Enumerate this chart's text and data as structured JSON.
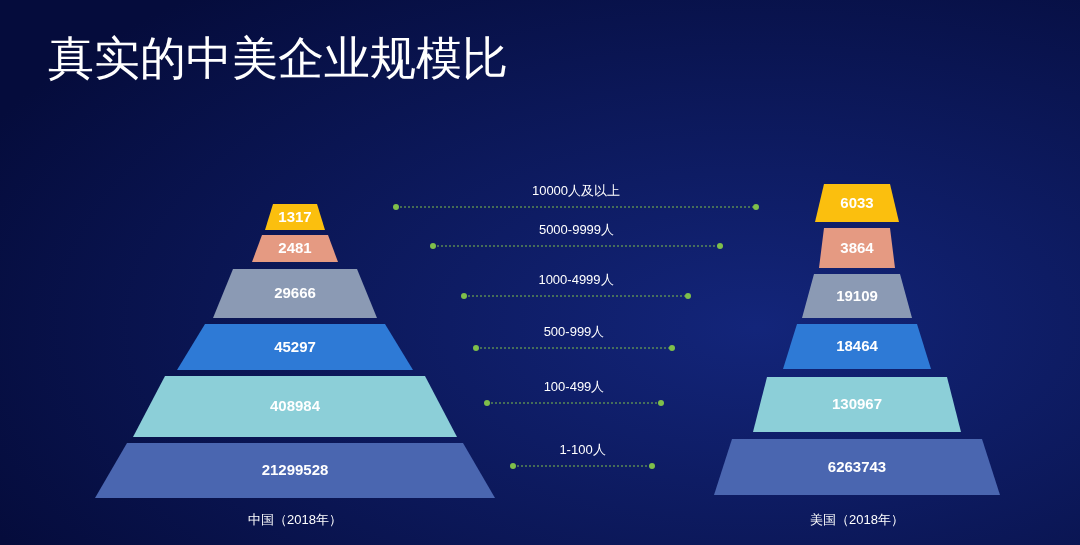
{
  "chart_data": {
    "type": "other",
    "title": "真实的中美企业规模比",
    "categories": [
      "10000人及以上",
      "5000-9999人",
      "1000-4999人",
      "500-999人",
      "100-499人",
      "1-100人"
    ],
    "series": [
      {
        "name": "中国（2018年）",
        "colors": [
          "#fbbf0e",
          "#e59a82",
          "#8b9ab4",
          "#2e7ad6",
          "#8ccfd8",
          "#4a66b0"
        ],
        "values": [
          1317,
          2481,
          29666,
          45297,
          408984,
          21299528
        ]
      },
      {
        "name": "美国（2018年）",
        "colors": [
          "#fbbf0e",
          "#e59a82",
          "#8b9ab4",
          "#2e7ad6",
          "#8ccfd8",
          "#4a66b0"
        ],
        "values": [
          6033,
          3864,
          19109,
          18464,
          130967,
          6263743
        ]
      }
    ],
    "data_labels": true
  }
}
